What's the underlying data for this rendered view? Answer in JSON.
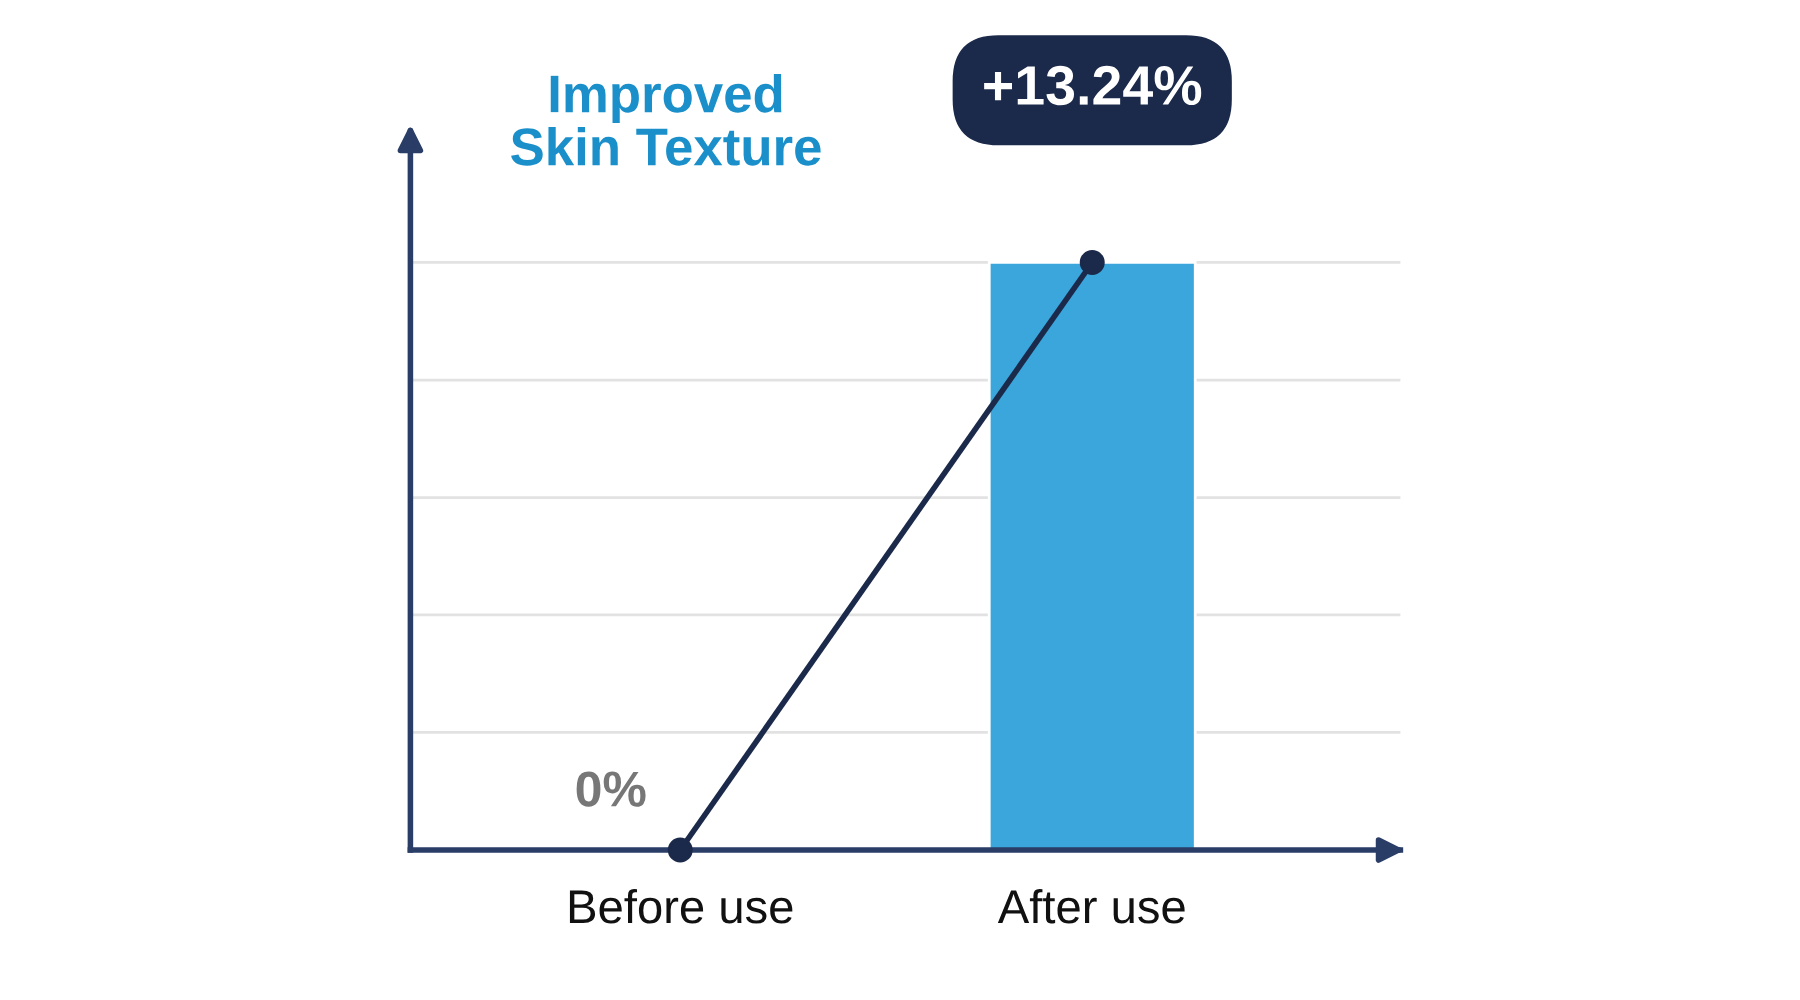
{
  "chart_data": {
    "type": "bar",
    "title": "Improved\nSkin Texture",
    "categories": [
      "Before use",
      "After use"
    ],
    "series": [
      {
        "color": "#3aa6dc",
        "values": [
          null,
          13.24
        ]
      },
      {
        "type": "line",
        "color": "#1b2a4a",
        "marker": "circle",
        "values": [
          0,
          13.24
        ],
        "value_labels": [
          "0%",
          "+13.24%"
        ]
      }
    ],
    "ylim": [
      0,
      16
    ],
    "yticks": [
      {
        "value": 2.65,
        "label": null
      },
      {
        "value": 5.3,
        "label": null
      },
      {
        "value": 7.94,
        "label": null
      },
      {
        "value": 10.59,
        "label": null
      },
      {
        "value": 13.24,
        "label": null
      }
    ],
    "grid": "y",
    "tick_labels": "x"
  }
}
